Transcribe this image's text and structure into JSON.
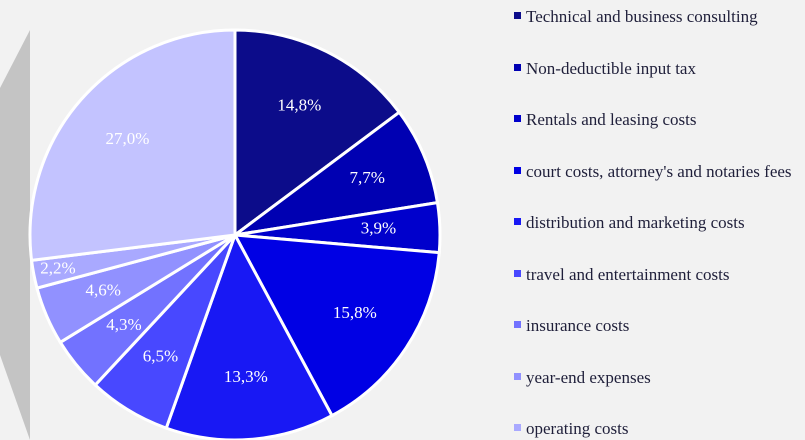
{
  "chart_data": {
    "type": "pie",
    "categories": [
      "Technical and business consulting",
      "Non-deductible input tax",
      "Rentals and leasing costs",
      "court costs, attorney's and notaries fees",
      "distribution and marketing costs",
      "travel and entertainment costs",
      "insurance costs",
      "year-end expenses",
      "operating costs",
      null
    ],
    "values": [
      14.8,
      7.7,
      3.9,
      15.8,
      13.3,
      6.5,
      4.3,
      4.6,
      2.2,
      27.0
    ],
    "value_labels": [
      "14,8%",
      "7,7%",
      "3,9%",
      "15,8%",
      "13,3%",
      "6,5%",
      "4,3%",
      "4,6%",
      "2,2%",
      "27,0%"
    ],
    "colors": [
      "#0c0c8a",
      "#0000b2",
      "#0000cc",
      "#0000e4",
      "#1818f4",
      "#4848ff",
      "#7272ff",
      "#9191ff",
      "#a9a9ff",
      "#c3c3ff"
    ]
  }
}
